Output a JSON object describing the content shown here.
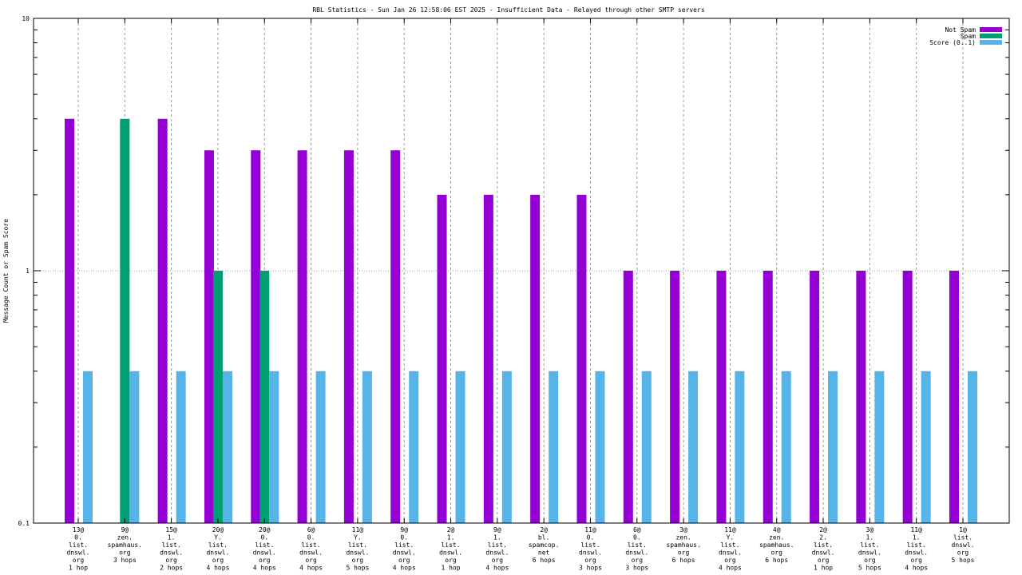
{
  "chart_data": {
    "type": "bar",
    "title": "RBL Statistics - Sun Jan 26 12:58:06 EST 2025 - Insufficient Data - Relayed through other SMTP servers",
    "xlabel": "",
    "ylabel": "Message Count or Spam Score",
    "yscale": "log",
    "ylim": [
      0.1,
      10
    ],
    "yticks": [
      "10",
      "1",
      "0.1"
    ],
    "grid": true,
    "legend_position": "top-right",
    "categories": [
      [
        "13@",
        "0.",
        "list.",
        "dnswl.",
        "org",
        "1 hop"
      ],
      [
        "9@",
        "zen.",
        "spamhaus.",
        "org",
        "3 hops"
      ],
      [
        "15@",
        "1.",
        "list.",
        "dnswl.",
        "org",
        "2 hops"
      ],
      [
        "20@",
        "Y.",
        "list.",
        "dnswl.",
        "org",
        "4 hops"
      ],
      [
        "20@",
        "0.",
        "list.",
        "dnswl.",
        "org",
        "4 hops"
      ],
      [
        "6@",
        "0.",
        "list.",
        "dnswl.",
        "org",
        "4 hops"
      ],
      [
        "11@",
        "Y.",
        "list.",
        "dnswl.",
        "org",
        "5 hops"
      ],
      [
        "9@",
        "0.",
        "list.",
        "dnswl.",
        "org",
        "4 hops"
      ],
      [
        "2@",
        "1.",
        "list.",
        "dnswl.",
        "org",
        "1 hop"
      ],
      [
        "9@",
        "1.",
        "list.",
        "dnswl.",
        "org",
        "4 hops"
      ],
      [
        "2@",
        "bl.",
        "spamcop.",
        "net",
        "6 hops"
      ],
      [
        "11@",
        "0.",
        "list.",
        "dnswl.",
        "org",
        "3 hops"
      ],
      [
        "6@",
        "0.",
        "list.",
        "dnswl.",
        "org",
        "3 hops"
      ],
      [
        "3@",
        "zen.",
        "spamhaus.",
        "org",
        "6 hops"
      ],
      [
        "11@",
        "Y.",
        "list.",
        "dnswl.",
        "org",
        "4 hops"
      ],
      [
        "4@",
        "zen.",
        "spamhaus.",
        "org",
        "6 hops"
      ],
      [
        "2@",
        "2.",
        "list.",
        "dnswl.",
        "org",
        "1 hop"
      ],
      [
        "3@",
        "1.",
        "list.",
        "dnswl.",
        "org",
        "5 hops"
      ],
      [
        "11@",
        "1.",
        "list.",
        "dnswl.",
        "org",
        "4 hops"
      ],
      [
        "1@",
        "list.",
        "dnswl.",
        "org",
        "5 hops"
      ]
    ],
    "series": [
      {
        "name": "Not Spam",
        "color": "#9400d3",
        "values": [
          4,
          0,
          4,
          3,
          3,
          3,
          3,
          3,
          2,
          2,
          2,
          2,
          1,
          1,
          1,
          1,
          1,
          1,
          1,
          1
        ]
      },
      {
        "name": "Spam",
        "color": "#009e73",
        "values": [
          0,
          4,
          0,
          1,
          1,
          0,
          0,
          0,
          0,
          0,
          0,
          0,
          0,
          0,
          0,
          0,
          0,
          0,
          0,
          0
        ]
      },
      {
        "name": "Score (0..1)",
        "color": "#56b4e9",
        "values": [
          0.4,
          0.4,
          0.4,
          0.4,
          0.4,
          0.4,
          0.4,
          0.4,
          0.4,
          0.4,
          0.4,
          0.4,
          0.4,
          0.4,
          0.4,
          0.4,
          0.4,
          0.4,
          0.4,
          0.4
        ]
      }
    ]
  }
}
